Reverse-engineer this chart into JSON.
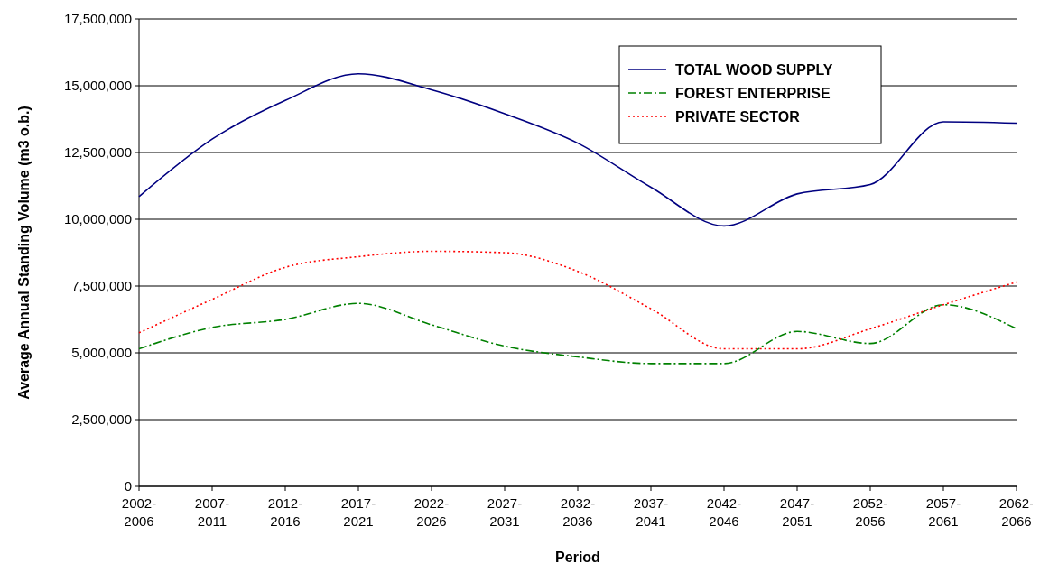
{
  "chart_data": {
    "type": "line",
    "xlabel": "Period",
    "ylabel": "Average Annual Standing Volume (m3 o.b.)",
    "categories": [
      "2002-2006",
      "2007-2011",
      "2012-2016",
      "2017-2021",
      "2022-2026",
      "2027-2031",
      "2032-2036",
      "2037-2041",
      "2042-2046",
      "2047-2051",
      "2052-2056",
      "2057-2061",
      "2062-2066"
    ],
    "ylim": [
      0,
      17500000
    ],
    "yticks": [
      {
        "value": 0,
        "label": "0"
      },
      {
        "value": 2500000,
        "label": "2,500,000"
      },
      {
        "value": 5000000,
        "label": "5,000,000"
      },
      {
        "value": 7500000,
        "label": "7,500,000"
      },
      {
        "value": 10000000,
        "label": "10,000,000"
      },
      {
        "value": 12500000,
        "label": "12,500,000"
      },
      {
        "value": 15000000,
        "label": "15,000,000"
      },
      {
        "value": 17500000,
        "label": "17,500,000"
      }
    ],
    "grid": "y",
    "legend": "top right",
    "marker": "none",
    "series": [
      {
        "name": "TOTAL WOOD SUPPLY",
        "color": "#000080",
        "line_style": "solid",
        "values": [
          10850000,
          13000000,
          14450000,
          15450000,
          14850000,
          13950000,
          12850000,
          11200000,
          9750000,
          10950000,
          11300000,
          13650000,
          13600000
        ]
      },
      {
        "name": "FOREST ENTERPRISE",
        "color": "#008000",
        "line_style": "dashed",
        "values": [
          5150000,
          5950000,
          6250000,
          6850000,
          6050000,
          5250000,
          4850000,
          4600000,
          4600000,
          5800000,
          5350000,
          6800000,
          5900000
        ]
      },
      {
        "name": "PRIVATE SECTOR",
        "color": "#ff0000",
        "line_style": "dotted",
        "values": [
          5750000,
          7000000,
          8200000,
          8600000,
          8800000,
          8750000,
          8050000,
          6650000,
          5150000,
          5150000,
          5900000,
          6800000,
          7650000
        ]
      }
    ]
  }
}
